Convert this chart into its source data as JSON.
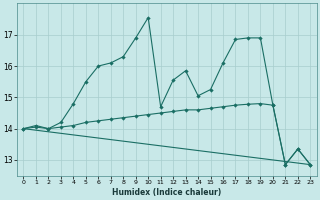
{
  "xlabel": "Humidex (Indice chaleur)",
  "background_color": "#c8e8e8",
  "grid_color": "#a8cece",
  "line_color": "#1a6e64",
  "xlim": [
    -0.5,
    23.5
  ],
  "ylim": [
    12.5,
    18.0
  ],
  "yticks": [
    13,
    14,
    15,
    16,
    17
  ],
  "xticks": [
    0,
    1,
    2,
    3,
    4,
    5,
    6,
    7,
    8,
    9,
    10,
    11,
    12,
    13,
    14,
    15,
    16,
    17,
    18,
    19,
    20,
    21,
    22,
    23
  ],
  "series1": [
    [
      0,
      14.0
    ],
    [
      1,
      14.1
    ],
    [
      2,
      14.0
    ],
    [
      3,
      14.2
    ],
    [
      4,
      14.8
    ],
    [
      5,
      15.5
    ],
    [
      6,
      16.0
    ],
    [
      7,
      16.1
    ],
    [
      8,
      16.3
    ],
    [
      9,
      16.9
    ],
    [
      10,
      17.55
    ],
    [
      11,
      14.7
    ],
    [
      12,
      15.55
    ],
    [
      13,
      15.85
    ],
    [
      14,
      15.05
    ],
    [
      15,
      15.25
    ],
    [
      16,
      16.1
    ],
    [
      17,
      16.85
    ],
    [
      18,
      16.9
    ],
    [
      19,
      16.9
    ],
    [
      20,
      14.75
    ],
    [
      21,
      12.85
    ],
    [
      22,
      13.35
    ],
    [
      23,
      12.85
    ]
  ],
  "series2": [
    [
      0,
      14.0
    ],
    [
      1,
      14.05
    ],
    [
      2,
      14.0
    ],
    [
      3,
      14.05
    ],
    [
      4,
      14.1
    ],
    [
      5,
      14.2
    ],
    [
      6,
      14.25
    ],
    [
      7,
      14.3
    ],
    [
      8,
      14.35
    ],
    [
      9,
      14.4
    ],
    [
      10,
      14.45
    ],
    [
      11,
      14.5
    ],
    [
      12,
      14.55
    ],
    [
      13,
      14.6
    ],
    [
      14,
      14.6
    ],
    [
      15,
      14.65
    ],
    [
      16,
      14.7
    ],
    [
      17,
      14.75
    ],
    [
      18,
      14.78
    ],
    [
      19,
      14.8
    ],
    [
      20,
      14.75
    ],
    [
      21,
      12.85
    ],
    [
      22,
      13.35
    ],
    [
      23,
      12.85
    ]
  ],
  "series3": [
    [
      0,
      14.0
    ],
    [
      23,
      12.85
    ]
  ]
}
